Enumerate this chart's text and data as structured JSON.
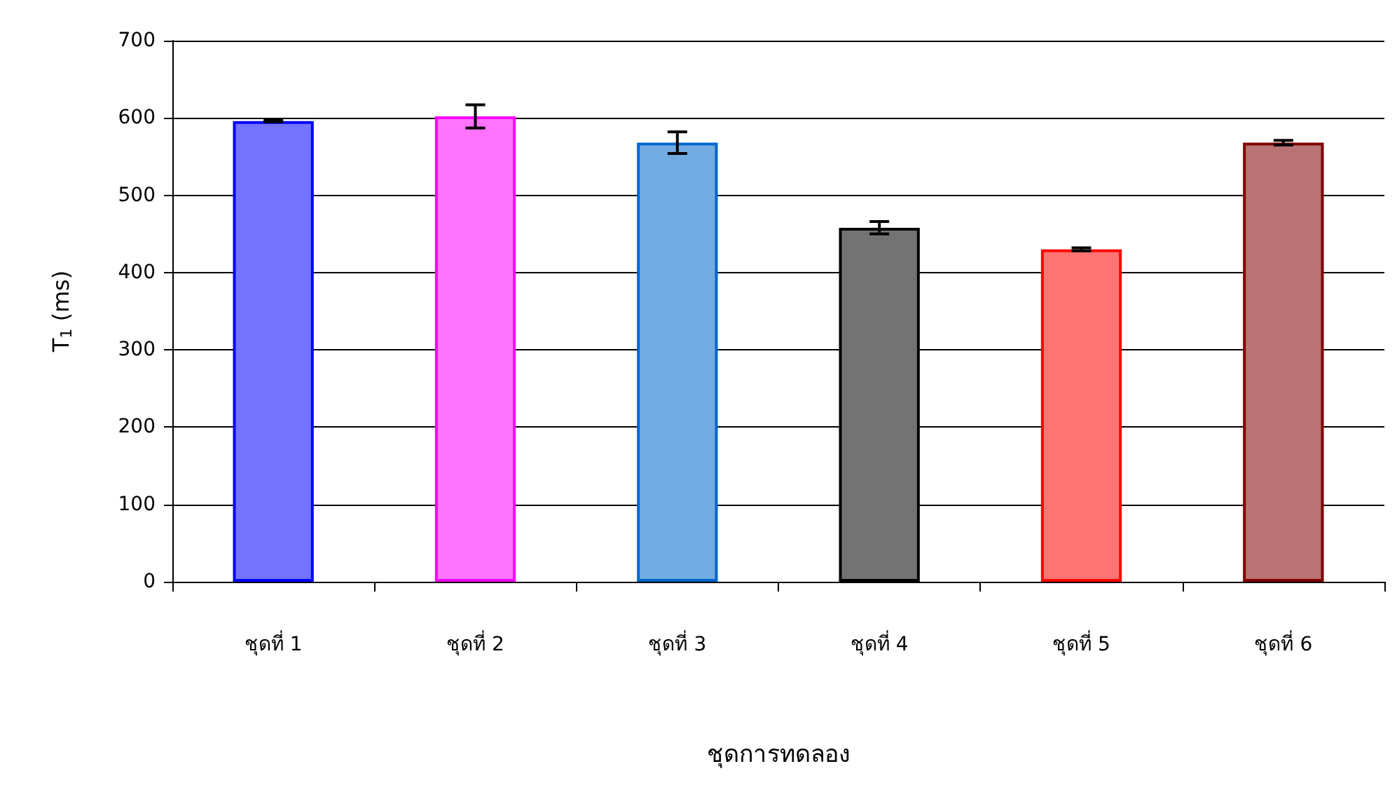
{
  "chart_data": {
    "type": "bar",
    "xlabel": "ชุดการทดลอง",
    "ylabel": "T$_{1}$ (ms)",
    "categories": [
      "ชุดที่ 1",
      "ชุดที่ 2",
      "ชุดที่ 3",
      "ชุดที่ 4",
      "ชุดที่ 5",
      "ชุดที่ 6"
    ],
    "values": [
      596,
      602,
      568,
      458,
      430,
      568
    ],
    "errors": [
      1,
      15,
      14,
      8,
      2,
      3
    ],
    "colors": [
      "#0000ff",
      "#ff00ff",
      "#0066cc",
      "#000000",
      "#ff0000",
      "#800000"
    ],
    "ylim": [
      0,
      700
    ],
    "yticks": [
      0,
      100,
      200,
      300,
      400,
      500,
      600,
      700
    ],
    "grid": "y"
  }
}
